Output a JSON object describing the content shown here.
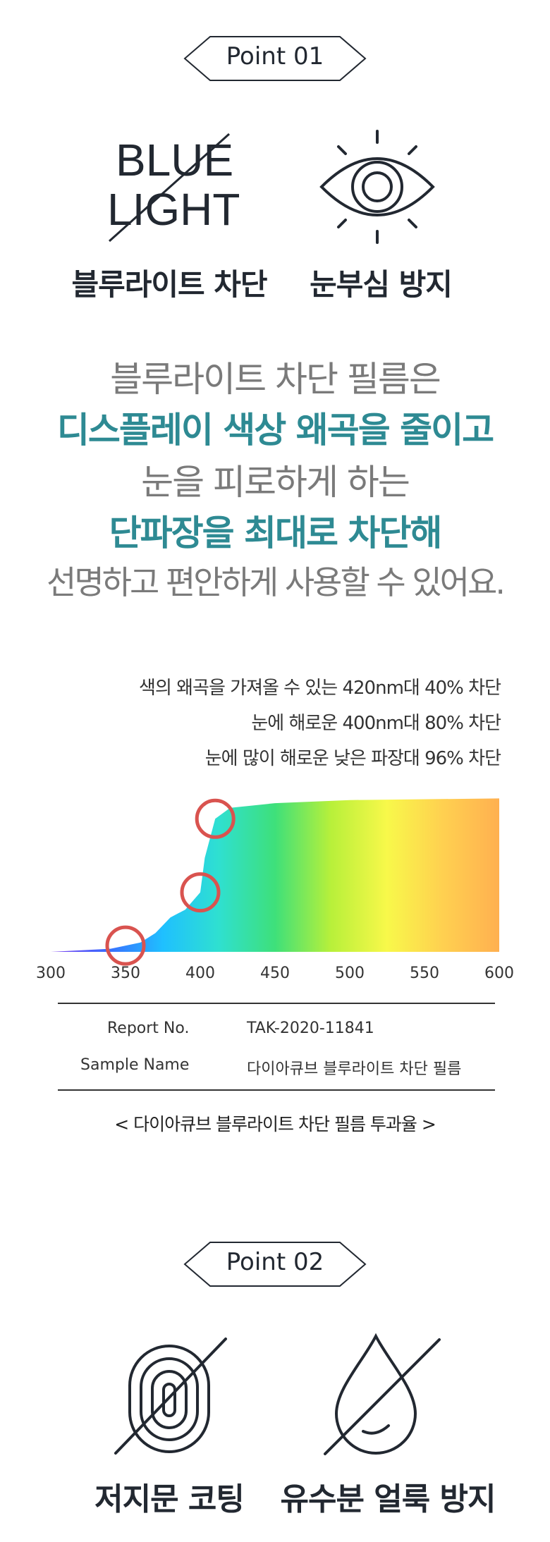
{
  "point1": {
    "badge": "Point 01",
    "blue_light_logo": {
      "line1": "BLUE",
      "line2": "LIGHT"
    },
    "features": [
      "블루라이트 차단",
      "눈부심 방지"
    ]
  },
  "copy": {
    "line1": "블루라이트 차단 필름은",
    "line2": "디스플레이 색상 왜곡을 줄이고",
    "line3": "눈을 피로하게 하는",
    "line4": "단파장을 최대로 차단해",
    "line5": "선명하고 편안하게 사용할 수 있어요."
  },
  "stats": [
    "색의 왜곡을 가져올 수 있는 420nm대 40% 차단",
    "눈에 해로운 400nm대 80% 차단",
    "눈에 많이 해로운 낮은 파장대 96% 차단"
  ],
  "chart_data": {
    "type": "area",
    "x_ticks": [
      "300",
      "350",
      "400",
      "450",
      "500",
      "550",
      "600"
    ],
    "xlim": [
      300,
      600
    ],
    "ylim": [
      0,
      100
    ],
    "curve": [
      {
        "x": 300,
        "y": 0
      },
      {
        "x": 340,
        "y": 2
      },
      {
        "x": 360,
        "y": 6
      },
      {
        "x": 370,
        "y": 12
      },
      {
        "x": 380,
        "y": 22
      },
      {
        "x": 390,
        "y": 27
      },
      {
        "x": 400,
        "y": 38
      },
      {
        "x": 403,
        "y": 60
      },
      {
        "x": 410,
        "y": 85
      },
      {
        "x": 420,
        "y": 92
      },
      {
        "x": 450,
        "y": 95
      },
      {
        "x": 500,
        "y": 97
      },
      {
        "x": 600,
        "y": 98
      }
    ],
    "markers_nm": [
      350,
      400,
      410
    ],
    "gradient_colors": [
      "#7b3cf0",
      "#3a6cff",
      "#1fc0ff",
      "#2fe0d0",
      "#3ee07a",
      "#b8f03a",
      "#f8f84a",
      "#ffd050",
      "#ffb050"
    ],
    "marker_color": "#d9534f"
  },
  "report": {
    "report_no_label": "Report No.",
    "report_no_value": "TAK-2020-11841",
    "sample_label": "Sample Name",
    "sample_value": "다이아큐브 블루라이트 차단 필름",
    "caption": "< 다이아큐브 블루라이트 차단 필름 투과율 >"
  },
  "point2": {
    "badge": "Point 02",
    "features": [
      "저지문 코팅",
      "유수분 얼룩 방지"
    ]
  }
}
